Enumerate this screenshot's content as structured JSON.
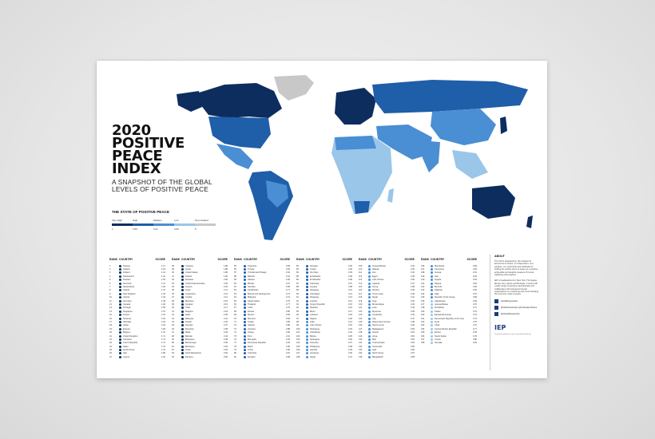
{
  "title_lines": [
    "2020",
    "POSITIVE",
    "PEACE",
    "INDEX"
  ],
  "subtitle": "A SNAPSHOT OF THE GLOBAL LEVELS OF POSITIVE PEACE",
  "legend": {
    "title": "THE STATE OF POSITIVE PEACE",
    "labels": [
      "Very High",
      "High",
      "Medium",
      "Low",
      "Not included"
    ],
    "values": [
      "1",
      "2.59",
      "3.21",
      "3.69",
      "5"
    ],
    "colors": [
      "#0d2d5e",
      "#1f5ea8",
      "#4a8ed4",
      "#9ac6ea",
      "#c8c8c8"
    ]
  },
  "table": {
    "headers": {
      "rank": "RANK",
      "country": "COUNTRY",
      "score": "SCORE"
    },
    "columns": [
      [
        [
          "1",
          "Norway",
          "1.17"
        ],
        [
          "2",
          "Iceland",
          "1.19"
        ],
        [
          "3",
          "Finland",
          "1.21"
        ],
        [
          "4",
          "Switzerland",
          "1.22"
        ],
        [
          "5",
          "Sweden",
          "1.25"
        ],
        [
          "6",
          "Denmark",
          "1.27"
        ],
        [
          "7",
          "Netherlands",
          "1.29"
        ],
        [
          "8",
          "Ireland",
          "1.37"
        ],
        [
          "9",
          "New Zealand",
          "1.42"
        ],
        [
          "10",
          "Austria",
          "1.43"
        ],
        [
          "11",
          "Germany",
          "1.45"
        ],
        [
          "12",
          "Canada",
          "1.46"
        ],
        [
          "13",
          "Portugal",
          "1.55"
        ],
        [
          "14",
          "Singapore",
          "1.57"
        ],
        [
          "15",
          "France",
          "1.61"
        ],
        [
          "16",
          "Slovenia",
          "1.62"
        ],
        [
          "17",
          "Australia",
          "1.63"
        ],
        [
          "18",
          "Japan",
          "1.64"
        ],
        [
          "19",
          "Estonia",
          "1.69"
        ],
        [
          "20",
          "Belgium",
          "1.70"
        ],
        [
          "21",
          "United Kingdom",
          "1.71"
        ],
        [
          "22",
          "Lithuania",
          "1.74"
        ],
        [
          "23",
          "Czech Republic",
          "1.74"
        ],
        [
          "24",
          "Spain",
          "1.75"
        ],
        [
          "25",
          "South Korea",
          "1.76"
        ],
        [
          "26",
          "Italy",
          "1.80"
        ],
        [
          "27",
          "Cyprus",
          "1.81"
        ]
      ],
      [
        [
          "28",
          "Uruguay",
          "1.86"
        ],
        [
          "29",
          "Latvia",
          "1.88"
        ],
        [
          "30",
          "United States",
          "1.89"
        ],
        [
          "31",
          "Poland",
          "1.95"
        ],
        [
          "32",
          "Slovakia",
          "2.00"
        ],
        [
          "33",
          "United Arab Emirates",
          "2.02"
        ],
        [
          "34",
          "Greece",
          "2.03"
        ],
        [
          "35",
          "Israel",
          "2.11"
        ],
        [
          "36",
          "Costa Rica",
          "2.13"
        ],
        [
          "37",
          "Croatia",
          "2.14"
        ],
        [
          "38",
          "Mauritius",
          "2.15"
        ],
        [
          "39",
          "Hungary",
          "2.16"
        ],
        [
          "40",
          "Chile",
          "2.17"
        ],
        [
          "41",
          "Bulgaria",
          "2.24"
        ],
        [
          "42",
          "Qatar",
          "2.28"
        ],
        [
          "43",
          "Malaysia",
          "2.31"
        ],
        [
          "44",
          "Kuwait",
          "2.32"
        ],
        [
          "45",
          "Georgia",
          "2.37"
        ],
        [
          "46",
          "Romania",
          "2.38"
        ],
        [
          "47",
          "Malta",
          "2.40"
        ],
        [
          "48",
          "Bahrain",
          "2.44"
        ],
        [
          "49",
          "Botswana",
          "2.48"
        ],
        [
          "50",
          "Montenegro",
          "2.50"
        ],
        [
          "51",
          "Botswana",
          "2.53"
        ],
        [
          "52",
          "Oman",
          "2.53"
        ],
        [
          "53",
          "North Macedonia",
          "2.54"
        ],
        [
          "54",
          "Panama",
          "2.56"
        ]
      ],
      [
        [
          "55",
          "Argentina",
          "2.59"
        ],
        [
          "56",
          "Tunisia",
          "2.60"
        ],
        [
          "57",
          "Trinidad and Tobago",
          "2.62"
        ],
        [
          "58",
          "Bahrain",
          "2.64"
        ],
        [
          "59",
          "Albania",
          "2.66"
        ],
        [
          "60",
          "Bhutan",
          "2.67"
        ],
        [
          "61",
          "Namibia",
          "2.68"
        ],
        [
          "62",
          "Kazakhstan",
          "2.71"
        ],
        [
          "63",
          "Bosnia and Herzegovina",
          "2.73"
        ],
        [
          "64",
          "Malaysia",
          "2.74"
        ],
        [
          "65",
          "Saudi Arabia",
          "2.75"
        ],
        [
          "66",
          "Thailand",
          "2.77"
        ],
        [
          "67",
          "Cuba",
          "2.79"
        ],
        [
          "68",
          "Russia",
          "2.80"
        ],
        [
          "69",
          "Mexico",
          "2.82"
        ],
        [
          "70",
          "Morocco",
          "2.84"
        ],
        [
          "71",
          "Jordan",
          "2.85"
        ],
        [
          "72",
          "Ukraine",
          "2.86"
        ],
        [
          "73",
          "Jamaica",
          "2.88"
        ],
        [
          "74",
          "Ghana",
          "2.90"
        ],
        [
          "75",
          "Peru",
          "2.91"
        ],
        [
          "76",
          "Mongolia",
          "2.93"
        ],
        [
          "77",
          "Dominican Republic",
          "2.94"
        ],
        [
          "78",
          "Brazil",
          "2.95"
        ],
        [
          "79",
          "China",
          "2.96"
        ],
        [
          "80",
          "Colombia",
          "2.97"
        ],
        [
          "81",
          "Ecuador",
          "2.98"
        ]
      ],
      [
        [
          "82",
          "Senegal",
          "3.00"
        ],
        [
          "83",
          "Turkey",
          "3.02"
        ],
        [
          "84",
          "Viet Nam",
          "3.03"
        ],
        [
          "85",
          "El Salvador",
          "3.05"
        ],
        [
          "86",
          "El Salvador",
          "3.06"
        ],
        [
          "87",
          "Indonesia",
          "3.07"
        ],
        [
          "88",
          "Guyana",
          "3.08"
        ],
        [
          "89",
          "Paraguay",
          "3.10"
        ],
        [
          "90",
          "Azerbaijan",
          "3.11"
        ],
        [
          "91",
          "Paraguay",
          "3.13"
        ],
        [
          "92",
          "Lesotho",
          "3.14"
        ],
        [
          "93",
          "Kyrgyz Republic",
          "3.15"
        ],
        [
          "94",
          "Rwanda",
          "3.16"
        ],
        [
          "95",
          "Benin",
          "3.17"
        ],
        [
          "96",
          "Lebanon",
          "3.18"
        ],
        [
          "97",
          "Nigeria",
          "3.20"
        ],
        [
          "98",
          "India",
          "3.21"
        ],
        [
          "99",
          "Cote d'Ivoire",
          "3.22"
        ],
        [
          "100",
          "Nicaragua",
          "3.23"
        ],
        [
          "101",
          "Uzbekistan",
          "3.24"
        ],
        [
          "102",
          "Bolivia",
          "3.25"
        ],
        [
          "103",
          "Nicaragua",
          "3.26"
        ],
        [
          "104",
          "Tanzania",
          "3.27"
        ],
        [
          "105",
          "Philippines",
          "3.28"
        ],
        [
          "106",
          "Gambia",
          "3.29"
        ],
        [
          "107",
          "Honduras",
          "3.30"
        ],
        [
          "108",
          "Nepal",
          "3.31"
        ]
      ],
      [
        [
          "109",
          "Guinea-Bissau",
          "3.32"
        ],
        [
          "110",
          "Djibouti",
          "3.33"
        ],
        [
          "111",
          "Iran",
          "3.34"
        ],
        [
          "112",
          "Egypt",
          "3.35"
        ],
        [
          "113",
          "Cote d'Ivoire",
          "3.36"
        ],
        [
          "114",
          "Uganda",
          "3.37"
        ],
        [
          "115",
          "Kenya",
          "3.38"
        ],
        [
          "116",
          "Zambia",
          "3.39"
        ],
        [
          "117",
          "Timor-Leste",
          "3.40"
        ],
        [
          "118",
          "Nepal",
          "3.41"
        ],
        [
          "119",
          "Togo",
          "3.42"
        ],
        [
          "120",
          "Mozambique",
          "3.43"
        ],
        [
          "121",
          "Laos",
          "3.44"
        ],
        [
          "122",
          "Myanmar",
          "3.45"
        ],
        [
          "123",
          "Cambodia",
          "3.46"
        ],
        [
          "124",
          "Iraq",
          "3.47"
        ],
        [
          "125",
          "Papua New Guinea",
          "3.48"
        ],
        [
          "126",
          "Sierra Leone",
          "3.49"
        ],
        [
          "127",
          "Madagascar",
          "3.50"
        ],
        [
          "128",
          "Liberia",
          "3.51"
        ],
        [
          "129",
          "Libya",
          "3.52"
        ],
        [
          "130",
          "Mali",
          "3.53"
        ],
        [
          "131",
          "Turkmenistan",
          "3.54"
        ],
        [
          "132",
          "Venezuela",
          "3.55"
        ],
        [
          "133",
          "Haiti",
          "3.56"
        ],
        [
          "134",
          "North Korea",
          "3.57"
        ],
        [
          "135",
          "Bangladesh",
          "3.58"
        ]
      ],
      [
        [
          "136",
          "Mauritania",
          "3.59"
        ],
        [
          "137",
          "Cameroon",
          "3.60"
        ],
        [
          "138",
          "Guinea",
          "3.61"
        ],
        [
          "139",
          "Iraq",
          "3.62"
        ],
        [
          "140",
          "Angola",
          "3.63"
        ],
        [
          "141",
          "Nigeria",
          "3.64"
        ],
        [
          "142",
          "Burundi",
          "3.65"
        ],
        [
          "143",
          "Pakistan",
          "3.66"
        ],
        [
          "144",
          "Haiti",
          "3.67"
        ],
        [
          "145",
          "Republic of the Congo",
          "3.68"
        ],
        [
          "146",
          "Afghanistan",
          "3.69"
        ],
        [
          "147",
          "Guinea-Bissau",
          "3.70"
        ],
        [
          "148",
          "Zimbabwe",
          "3.71"
        ],
        [
          "149",
          "Sudan",
          "3.72"
        ],
        [
          "150",
          "Equatorial Guinea",
          "3.73"
        ],
        [
          "151",
          "Democratic Republic of the Congo",
          "3.74"
        ],
        [
          "152",
          "Syria",
          "3.75"
        ],
        [
          "153",
          "Chad",
          "3.76"
        ],
        [
          "154",
          "Central African Republic",
          "3.77"
        ],
        [
          "155",
          "Eritrea",
          "3.78"
        ],
        [
          "156",
          "South Sudan",
          "3.79"
        ],
        [
          "157",
          "Yemen",
          "3.80"
        ],
        [
          "158",
          "Somalia",
          "3.81"
        ]
      ]
    ]
  },
  "about": {
    "title": "ABOUT",
    "text1": "The GPI is developed by the Institute for Economics & Peace, an independent, non-partisan, non-profit think tank dedicated to shifting the world's focus to peace as a positive, achievable and tangible measure of human wellbeing and progress.",
    "text2": "IEP is headquartered in New York, The Hague, Mexico City, Harare and Brussels. It works with a wide range of partners internationally and collaborates with intergovernmental organisations on measuring and communicating the economic value of peace.",
    "social": [
      "GlobalPeaceIndex",
      "@GlobPeaceIndex @IndicesEcoPeace",
      "@GlobalPeaceIndex"
    ],
    "logo": "IEP",
    "footer": "economicsandpeace.org  |  visionofhumanity.org"
  }
}
